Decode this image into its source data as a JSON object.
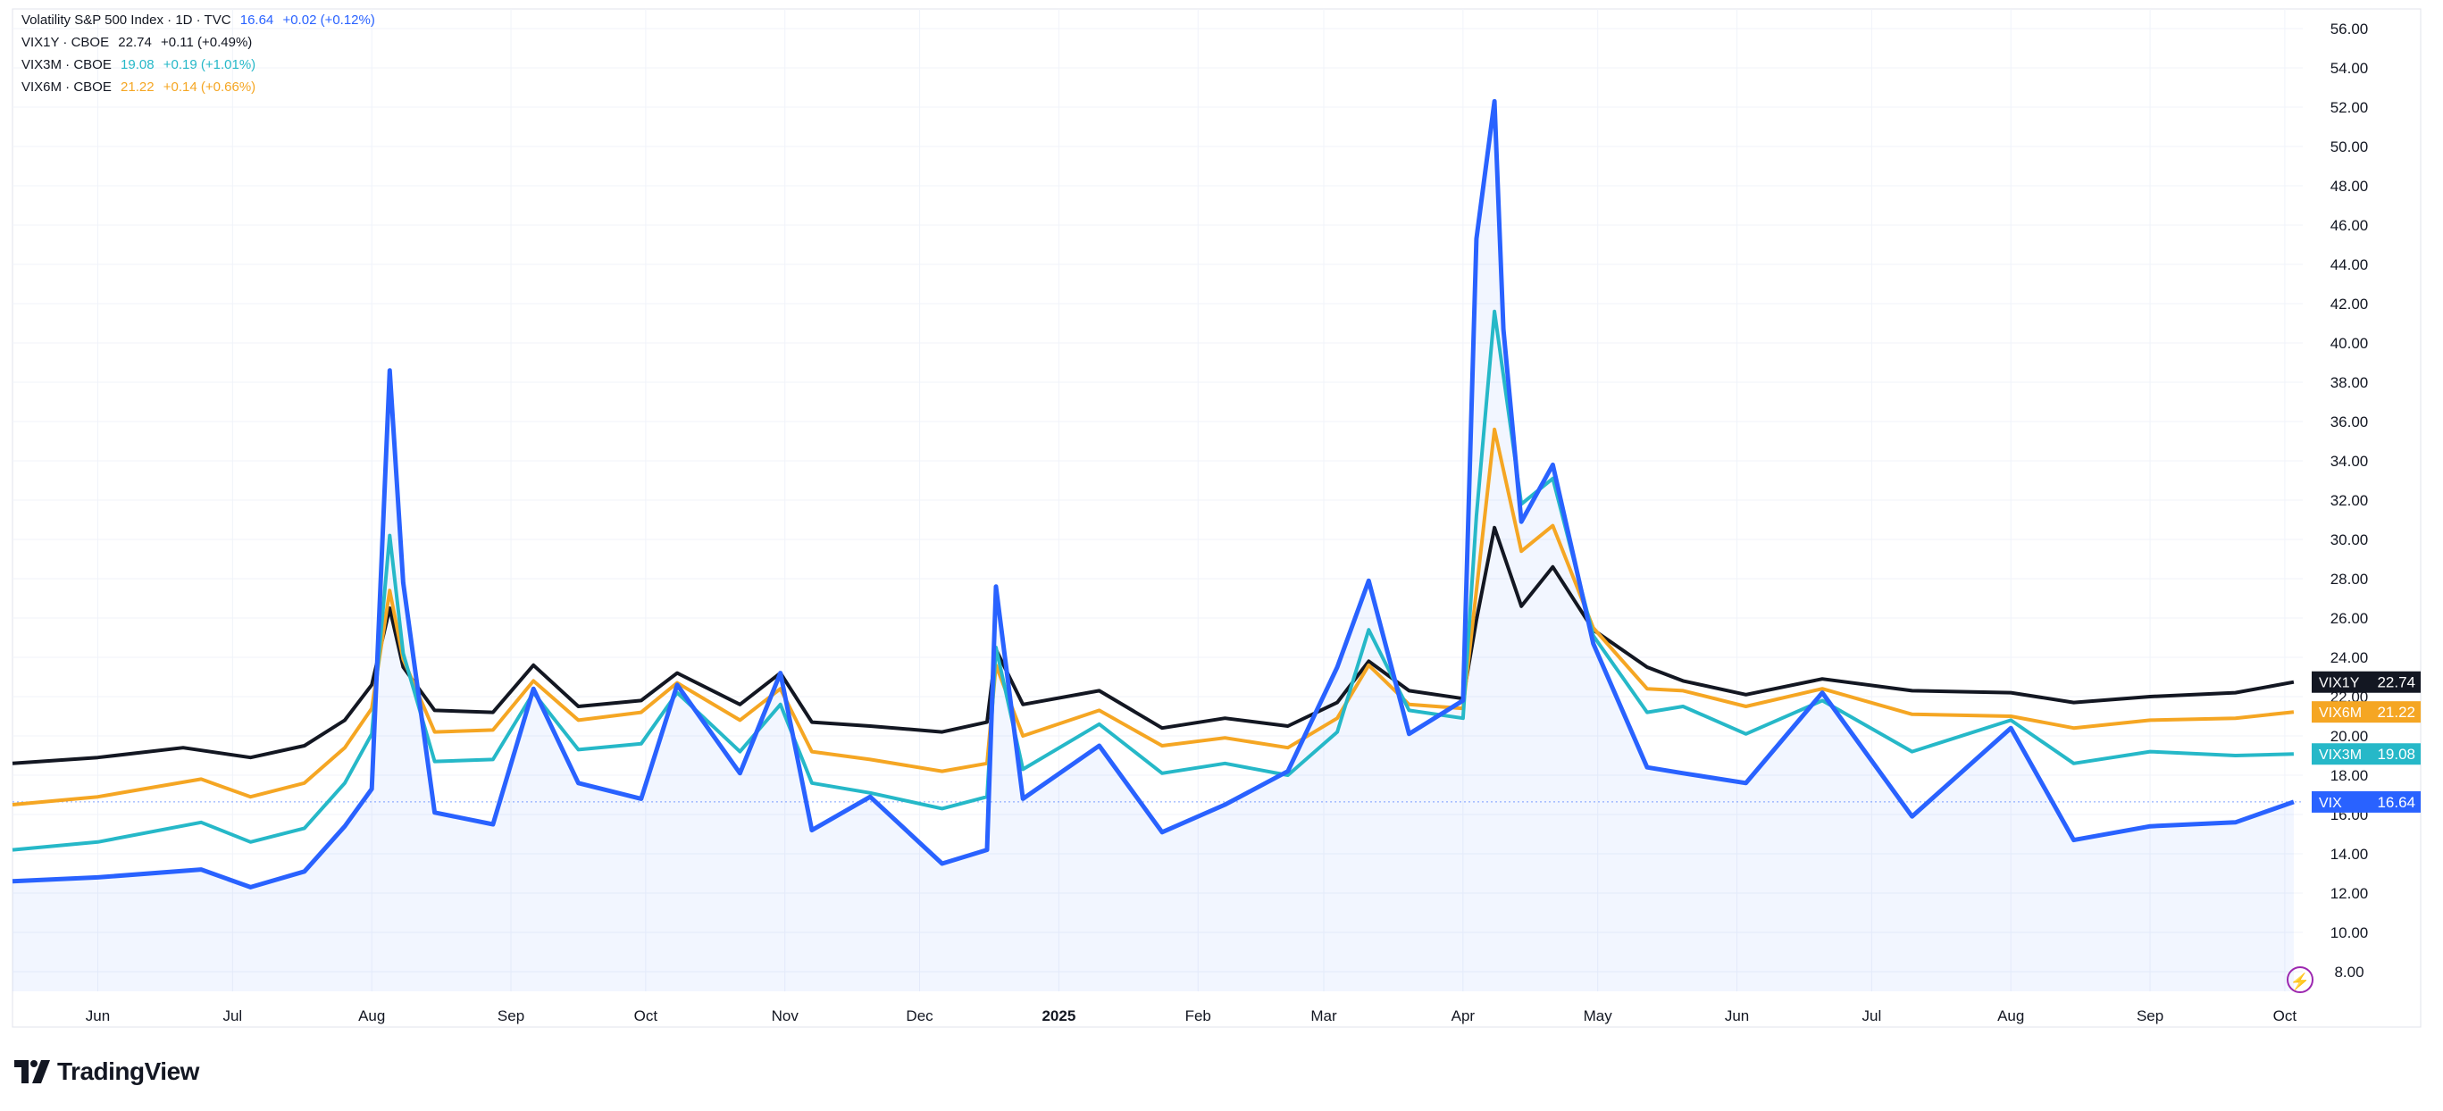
{
  "legend": [
    {
      "name": "Volatility S&P 500 Index · 1D · TVC",
      "value": "16.64",
      "change": "+0.02 (+0.12%)",
      "color": "#2962ff"
    },
    {
      "name": "VIX1Y · CBOE",
      "value": "22.74",
      "change": "+0.11 (+0.49%)",
      "color": "#131722"
    },
    {
      "name": "VIX3M · CBOE",
      "value": "19.08",
      "change": "+0.19 (+1.01%)",
      "color": "#26b8c8"
    },
    {
      "name": "VIX6M · CBOE",
      "value": "21.22",
      "change": "+0.14 (+0.66%)",
      "color": "#f5a623"
    }
  ],
  "brand": {
    "name": "TradingView"
  },
  "chart_data": {
    "type": "line",
    "title": "",
    "xlabel": "",
    "ylabel": "",
    "ylim": [
      7,
      57
    ],
    "y_ticks": [
      "56.00",
      "54.00",
      "52.00",
      "50.00",
      "48.00",
      "46.00",
      "44.00",
      "42.00",
      "40.00",
      "38.00",
      "36.00",
      "34.00",
      "32.00",
      "30.00",
      "28.00",
      "26.00",
      "24.00",
      "22.00",
      "20.00",
      "18.00",
      "16.00",
      "14.00",
      "12.00",
      "10.00",
      "8.00"
    ],
    "x_ticks": [
      {
        "label": "Jun",
        "x": "2024-06-01"
      },
      {
        "label": "Jul",
        "x": "2024-07-01"
      },
      {
        "label": "Aug",
        "x": "2024-08-01"
      },
      {
        "label": "Sep",
        "x": "2024-09-01"
      },
      {
        "label": "Oct",
        "x": "2024-10-01"
      },
      {
        "label": "Nov",
        "x": "2024-11-01"
      },
      {
        "label": "Dec",
        "x": "2024-12-01"
      },
      {
        "label": "2025",
        "x": "2025-01-01"
      },
      {
        "label": "Feb",
        "x": "2025-02-01"
      },
      {
        "label": "Mar",
        "x": "2025-03-01"
      },
      {
        "label": "Apr",
        "x": "2025-04-01"
      },
      {
        "label": "May",
        "x": "2025-05-01"
      },
      {
        "label": "Jun",
        "x": "2025-06-01"
      },
      {
        "label": "Jul",
        "x": "2025-07-01"
      },
      {
        "label": "Aug",
        "x": "2025-08-01"
      },
      {
        "label": "Sep",
        "x": "2025-09-01"
      },
      {
        "label": "Oct",
        "x": "2025-10-01"
      }
    ],
    "x_range": [
      "2024-05-13",
      "2025-10-05"
    ],
    "grid": true,
    "series": [
      {
        "name": "VIX1Y",
        "color": "#131722",
        "last": "22.74",
        "points": [
          [
            "2024-05-13",
            18.6
          ],
          [
            "2024-06-01",
            18.9
          ],
          [
            "2024-06-20",
            19.4
          ],
          [
            "2024-07-05",
            18.9
          ],
          [
            "2024-07-17",
            19.5
          ],
          [
            "2024-07-26",
            20.8
          ],
          [
            "2024-08-01",
            22.6
          ],
          [
            "2024-08-05",
            26.5
          ],
          [
            "2024-08-08",
            23.5
          ],
          [
            "2024-08-15",
            21.3
          ],
          [
            "2024-08-28",
            21.2
          ],
          [
            "2024-09-06",
            23.6
          ],
          [
            "2024-09-16",
            21.5
          ],
          [
            "2024-09-30",
            21.8
          ],
          [
            "2024-10-08",
            23.2
          ],
          [
            "2024-10-22",
            21.6
          ],
          [
            "2024-10-31",
            23.2
          ],
          [
            "2024-11-07",
            20.7
          ],
          [
            "2024-11-20",
            20.5
          ],
          [
            "2024-12-06",
            20.2
          ],
          [
            "2024-12-16",
            20.7
          ],
          [
            "2024-12-18",
            24.4
          ],
          [
            "2024-12-24",
            21.6
          ],
          [
            "2025-01-10",
            22.3
          ],
          [
            "2025-01-24",
            20.4
          ],
          [
            "2025-02-07",
            20.9
          ],
          [
            "2025-02-21",
            20.5
          ],
          [
            "2025-03-04",
            21.7
          ],
          [
            "2025-03-11",
            23.8
          ],
          [
            "2025-03-20",
            22.3
          ],
          [
            "2025-04-01",
            21.9
          ],
          [
            "2025-04-04",
            25.9
          ],
          [
            "2025-04-08",
            30.6
          ],
          [
            "2025-04-14",
            26.6
          ],
          [
            "2025-04-21",
            28.6
          ],
          [
            "2025-04-30",
            25.4
          ],
          [
            "2025-05-12",
            23.5
          ],
          [
            "2025-05-20",
            22.8
          ],
          [
            "2025-06-03",
            22.1
          ],
          [
            "2025-06-20",
            22.9
          ],
          [
            "2025-07-10",
            22.3
          ],
          [
            "2025-08-01",
            22.2
          ],
          [
            "2025-08-15",
            21.7
          ],
          [
            "2025-09-01",
            22.0
          ],
          [
            "2025-09-20",
            22.2
          ],
          [
            "2025-10-03",
            22.74
          ]
        ]
      },
      {
        "name": "VIX6M",
        "color": "#f5a623",
        "last": "21.22",
        "points": [
          [
            "2024-05-13",
            16.5
          ],
          [
            "2024-06-01",
            16.9
          ],
          [
            "2024-06-24",
            17.8
          ],
          [
            "2024-07-05",
            16.9
          ],
          [
            "2024-07-17",
            17.6
          ],
          [
            "2024-07-26",
            19.4
          ],
          [
            "2024-08-01",
            21.4
          ],
          [
            "2024-08-05",
            27.4
          ],
          [
            "2024-08-08",
            23.9
          ],
          [
            "2024-08-15",
            20.2
          ],
          [
            "2024-08-28",
            20.3
          ],
          [
            "2024-09-06",
            22.8
          ],
          [
            "2024-09-16",
            20.8
          ],
          [
            "2024-09-30",
            21.2
          ],
          [
            "2024-10-08",
            22.7
          ],
          [
            "2024-10-22",
            20.8
          ],
          [
            "2024-10-31",
            22.4
          ],
          [
            "2024-11-07",
            19.2
          ],
          [
            "2024-11-20",
            18.8
          ],
          [
            "2024-12-06",
            18.2
          ],
          [
            "2024-12-16",
            18.6
          ],
          [
            "2024-12-18",
            23.6
          ],
          [
            "2024-12-24",
            20.0
          ],
          [
            "2025-01-10",
            21.3
          ],
          [
            "2025-01-24",
            19.5
          ],
          [
            "2025-02-07",
            19.9
          ],
          [
            "2025-02-21",
            19.4
          ],
          [
            "2025-03-04",
            20.9
          ],
          [
            "2025-03-11",
            23.6
          ],
          [
            "2025-03-20",
            21.6
          ],
          [
            "2025-04-01",
            21.4
          ],
          [
            "2025-04-04",
            27.4
          ],
          [
            "2025-04-08",
            35.6
          ],
          [
            "2025-04-14",
            29.4
          ],
          [
            "2025-04-21",
            30.7
          ],
          [
            "2025-04-30",
            25.5
          ],
          [
            "2025-05-12",
            22.4
          ],
          [
            "2025-05-20",
            22.3
          ],
          [
            "2025-06-03",
            21.5
          ],
          [
            "2025-06-20",
            22.4
          ],
          [
            "2025-07-10",
            21.1
          ],
          [
            "2025-08-01",
            21.0
          ],
          [
            "2025-08-15",
            20.4
          ],
          [
            "2025-09-01",
            20.8
          ],
          [
            "2025-09-20",
            20.9
          ],
          [
            "2025-10-03",
            21.22
          ]
        ]
      },
      {
        "name": "VIX3M",
        "color": "#26b8c8",
        "last": "19.08",
        "points": [
          [
            "2024-05-13",
            14.2
          ],
          [
            "2024-06-01",
            14.6
          ],
          [
            "2024-06-24",
            15.6
          ],
          [
            "2024-07-05",
            14.6
          ],
          [
            "2024-07-17",
            15.3
          ],
          [
            "2024-07-26",
            17.6
          ],
          [
            "2024-08-01",
            20.1
          ],
          [
            "2024-08-05",
            30.2
          ],
          [
            "2024-08-08",
            24.2
          ],
          [
            "2024-08-15",
            18.7
          ],
          [
            "2024-08-28",
            18.8
          ],
          [
            "2024-09-06",
            22.2
          ],
          [
            "2024-09-16",
            19.3
          ],
          [
            "2024-09-30",
            19.6
          ],
          [
            "2024-10-08",
            22.2
          ],
          [
            "2024-10-22",
            19.2
          ],
          [
            "2024-10-31",
            21.6
          ],
          [
            "2024-11-07",
            17.6
          ],
          [
            "2024-11-20",
            17.1
          ],
          [
            "2024-12-06",
            16.3
          ],
          [
            "2024-12-16",
            16.9
          ],
          [
            "2024-12-18",
            24.5
          ],
          [
            "2024-12-24",
            18.3
          ],
          [
            "2025-01-10",
            20.6
          ],
          [
            "2025-01-24",
            18.1
          ],
          [
            "2025-02-07",
            18.6
          ],
          [
            "2025-02-21",
            18.0
          ],
          [
            "2025-03-04",
            20.2
          ],
          [
            "2025-03-11",
            25.4
          ],
          [
            "2025-03-20",
            21.3
          ],
          [
            "2025-04-01",
            20.9
          ],
          [
            "2025-04-04",
            31.2
          ],
          [
            "2025-04-08",
            41.6
          ],
          [
            "2025-04-14",
            31.8
          ],
          [
            "2025-04-21",
            33.1
          ],
          [
            "2025-04-30",
            25.1
          ],
          [
            "2025-05-12",
            21.2
          ],
          [
            "2025-05-20",
            21.5
          ],
          [
            "2025-06-03",
            20.1
          ],
          [
            "2025-06-20",
            21.8
          ],
          [
            "2025-07-10",
            19.2
          ],
          [
            "2025-08-01",
            20.8
          ],
          [
            "2025-08-15",
            18.6
          ],
          [
            "2025-09-01",
            19.2
          ],
          [
            "2025-09-20",
            19.0
          ],
          [
            "2025-10-03",
            19.08
          ]
        ]
      },
      {
        "name": "VIX",
        "color": "#2962ff",
        "last": "16.64",
        "points": [
          [
            "2024-05-13",
            12.6
          ],
          [
            "2024-06-01",
            12.8
          ],
          [
            "2024-06-24",
            13.2
          ],
          [
            "2024-07-05",
            12.3
          ],
          [
            "2024-07-17",
            13.1
          ],
          [
            "2024-07-26",
            15.4
          ],
          [
            "2024-08-01",
            17.3
          ],
          [
            "2024-08-05",
            38.6
          ],
          [
            "2024-08-08",
            27.8
          ],
          [
            "2024-08-15",
            16.1
          ],
          [
            "2024-08-28",
            15.5
          ],
          [
            "2024-09-06",
            22.4
          ],
          [
            "2024-09-16",
            17.6
          ],
          [
            "2024-09-30",
            16.8
          ],
          [
            "2024-10-08",
            22.6
          ],
          [
            "2024-10-22",
            18.1
          ],
          [
            "2024-10-31",
            23.2
          ],
          [
            "2024-11-07",
            15.2
          ],
          [
            "2024-11-20",
            16.9
          ],
          [
            "2024-12-06",
            13.5
          ],
          [
            "2024-12-16",
            14.2
          ],
          [
            "2024-12-18",
            27.6
          ],
          [
            "2024-12-24",
            16.8
          ],
          [
            "2025-01-10",
            19.5
          ],
          [
            "2025-01-24",
            15.1
          ],
          [
            "2025-02-07",
            16.5
          ],
          [
            "2025-02-21",
            18.2
          ],
          [
            "2025-03-04",
            23.5
          ],
          [
            "2025-03-11",
            27.9
          ],
          [
            "2025-03-20",
            20.1
          ],
          [
            "2025-04-01",
            21.8
          ],
          [
            "2025-04-04",
            45.3
          ],
          [
            "2025-04-08",
            52.3
          ],
          [
            "2025-04-10",
            40.7
          ],
          [
            "2025-04-14",
            30.9
          ],
          [
            "2025-04-21",
            33.8
          ],
          [
            "2025-04-30",
            24.7
          ],
          [
            "2025-05-12",
            18.4
          ],
          [
            "2025-05-20",
            18.1
          ],
          [
            "2025-06-03",
            17.6
          ],
          [
            "2025-06-20",
            22.2
          ],
          [
            "2025-07-10",
            15.9
          ],
          [
            "2025-08-01",
            20.4
          ],
          [
            "2025-08-15",
            14.7
          ],
          [
            "2025-09-01",
            15.4
          ],
          [
            "2025-09-20",
            15.6
          ],
          [
            "2025-10-03",
            16.64
          ]
        ]
      }
    ]
  }
}
